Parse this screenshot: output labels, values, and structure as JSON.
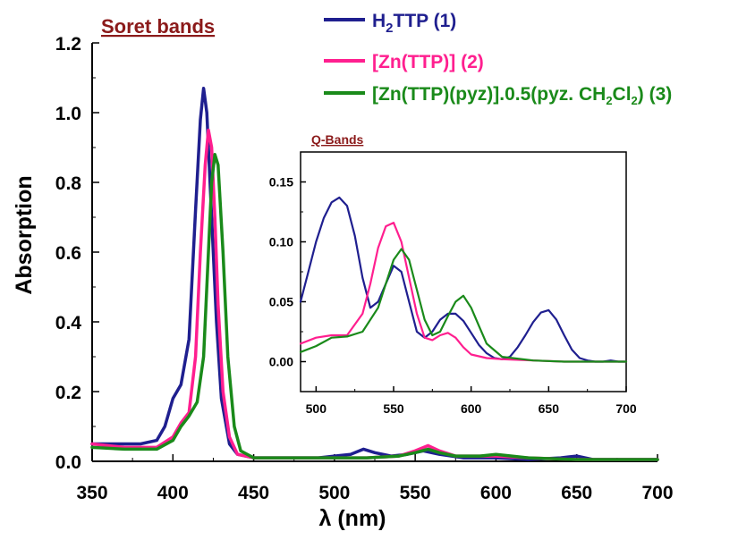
{
  "colors": {
    "series1": "#1f1f8f",
    "series2": "#ff1f8f",
    "series3": "#1a8a1a",
    "title": "#8b1a1a"
  },
  "chart_data": [
    {
      "type": "line",
      "title": "Soret bands",
      "xlabel": "λ (nm)",
      "ylabel": "Absorption",
      "xlim": [
        350,
        700
      ],
      "ylim": [
        0,
        1.2
      ],
      "xticks": [
        "350",
        "400",
        "450",
        "500",
        "550",
        "600",
        "650",
        "700"
      ],
      "yticks": [
        "0.0",
        "0.2",
        "0.4",
        "0.6",
        "0.8",
        "1.0",
        "1.2"
      ],
      "grid": false,
      "legend_position": "top-right",
      "series": [
        {
          "name": "H2TTP (1)",
          "name_main": "H",
          "name_sub": "2",
          "name_rest": "TTP (1)",
          "x": [
            350,
            360,
            370,
            380,
            390,
            395,
            400,
            405,
            410,
            414,
            417,
            419,
            421,
            424,
            427,
            430,
            435,
            440,
            450,
            470,
            490,
            510,
            518,
            525,
            535,
            545,
            555,
            565,
            580,
            600,
            620,
            640,
            650,
            660,
            680,
            700
          ],
          "y": [
            0.05,
            0.05,
            0.05,
            0.05,
            0.06,
            0.1,
            0.18,
            0.22,
            0.35,
            0.72,
            0.98,
            1.07,
            1.0,
            0.7,
            0.4,
            0.18,
            0.05,
            0.02,
            0.01,
            0.01,
            0.01,
            0.02,
            0.035,
            0.025,
            0.015,
            0.02,
            0.03,
            0.02,
            0.01,
            0.01,
            0.005,
            0.01,
            0.015,
            0.005,
            0.005,
            0.005
          ]
        },
        {
          "name": "[Zn(TTP)] (2)",
          "x": [
            350,
            370,
            390,
            400,
            405,
            410,
            414,
            417,
            420,
            422,
            424,
            426,
            428,
            431,
            435,
            440,
            450,
            480,
            500,
            520,
            540,
            550,
            558,
            565,
            575,
            590,
            600,
            620,
            650,
            700
          ],
          "y": [
            0.05,
            0.04,
            0.04,
            0.07,
            0.11,
            0.14,
            0.3,
            0.6,
            0.85,
            0.95,
            0.9,
            0.7,
            0.45,
            0.2,
            0.07,
            0.02,
            0.01,
            0.01,
            0.01,
            0.01,
            0.015,
            0.03,
            0.045,
            0.03,
            0.015,
            0.015,
            0.015,
            0.01,
            0.005,
            0.005
          ]
        },
        {
          "name": "[Zn(TTP)(pyz)].0.5(pyz. CH2Cl2) (3)",
          "name_a": "[Zn(TTP)(pyz)].0.5(pyz. CH",
          "name_sub1": "2",
          "name_b": "Cl",
          "name_sub2": "2",
          "name_c": ") (3)",
          "x": [
            350,
            370,
            390,
            400,
            405,
            410,
            415,
            419,
            422,
            424,
            426,
            428,
            431,
            434,
            438,
            442,
            450,
            480,
            500,
            520,
            540,
            550,
            558,
            565,
            575,
            590,
            600,
            620,
            650,
            700
          ],
          "y": [
            0.04,
            0.035,
            0.035,
            0.06,
            0.1,
            0.13,
            0.17,
            0.3,
            0.6,
            0.8,
            0.88,
            0.85,
            0.6,
            0.3,
            0.1,
            0.03,
            0.01,
            0.01,
            0.01,
            0.01,
            0.015,
            0.025,
            0.035,
            0.025,
            0.015,
            0.015,
            0.02,
            0.01,
            0.005,
            0.005
          ]
        }
      ]
    },
    {
      "type": "line",
      "title": "Q-Bands",
      "xlim": [
        490,
        700
      ],
      "ylim": [
        -0.025,
        0.175
      ],
      "xticks": [
        "500",
        "550",
        "600",
        "650",
        "700"
      ],
      "yticks": [
        "0.00",
        "0.05",
        "0.10",
        "0.15"
      ],
      "series": [
        {
          "name": "H2TTP (1)",
          "x": [
            490,
            495,
            500,
            505,
            510,
            515,
            520,
            525,
            530,
            535,
            540,
            545,
            550,
            555,
            560,
            565,
            570,
            575,
            580,
            585,
            590,
            595,
            600,
            605,
            610,
            615,
            620,
            625,
            630,
            635,
            640,
            645,
            650,
            655,
            660,
            665,
            670,
            675,
            680,
            685,
            690,
            695,
            700
          ],
          "y": [
            0.05,
            0.075,
            0.1,
            0.12,
            0.133,
            0.137,
            0.13,
            0.105,
            0.07,
            0.045,
            0.05,
            0.065,
            0.08,
            0.075,
            0.05,
            0.025,
            0.02,
            0.025,
            0.035,
            0.04,
            0.04,
            0.034,
            0.024,
            0.014,
            0.007,
            0.003,
            0.002,
            0.004,
            0.012,
            0.022,
            0.033,
            0.041,
            0.043,
            0.035,
            0.022,
            0.01,
            0.003,
            0.001,
            0.0,
            0.0,
            0.001,
            0.0,
            0.0
          ]
        },
        {
          "name": "[Zn(TTP)] (2)",
          "x": [
            490,
            500,
            510,
            520,
            530,
            535,
            540,
            545,
            550,
            555,
            560,
            565,
            570,
            575,
            580,
            585,
            590,
            595,
            600,
            610,
            620,
            640,
            660,
            680,
            700
          ],
          "y": [
            0.015,
            0.02,
            0.022,
            0.022,
            0.04,
            0.065,
            0.095,
            0.113,
            0.116,
            0.1,
            0.07,
            0.04,
            0.02,
            0.018,
            0.022,
            0.024,
            0.02,
            0.012,
            0.006,
            0.003,
            0.002,
            0.001,
            0.0,
            0.0,
            0.0
          ]
        },
        {
          "name": "[Zn(TTP)(pyz)].0.5(pyz. CH2Cl2) (3)",
          "x": [
            490,
            500,
            510,
            520,
            530,
            540,
            545,
            550,
            555,
            560,
            565,
            570,
            575,
            580,
            585,
            590,
            595,
            600,
            605,
            610,
            620,
            640,
            660,
            680,
            700
          ],
          "y": [
            0.008,
            0.013,
            0.02,
            0.021,
            0.025,
            0.045,
            0.065,
            0.085,
            0.094,
            0.085,
            0.06,
            0.035,
            0.022,
            0.025,
            0.038,
            0.05,
            0.055,
            0.045,
            0.03,
            0.015,
            0.004,
            0.001,
            0.0,
            0.0,
            0.0
          ]
        }
      ]
    }
  ]
}
